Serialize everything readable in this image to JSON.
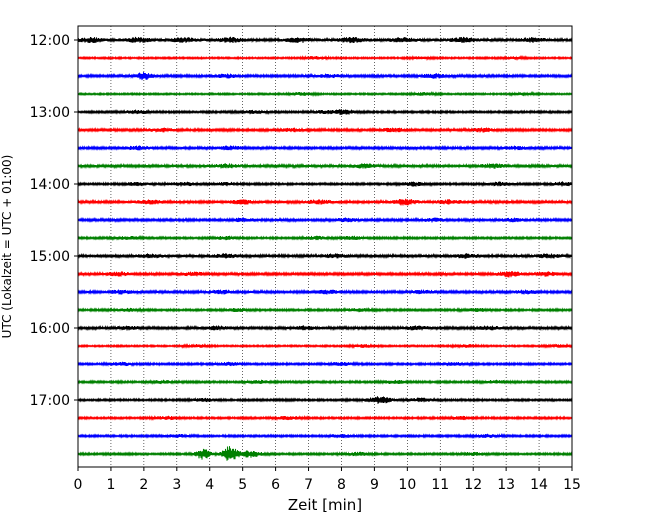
{
  "chart_data": {
    "type": "line",
    "title": "",
    "xlabel": "Zeit  [min]",
    "ylabel": "UTC (Lokalzeit = UTC + 01:00)",
    "xlim": [
      0,
      15
    ],
    "x_ticks": [
      "0",
      "1",
      "2",
      "3",
      "4",
      "5",
      "6",
      "7",
      "8",
      "9",
      "10",
      "11",
      "12",
      "13",
      "14",
      "15"
    ],
    "y_ticks": [
      "12:00",
      "13:00",
      "14:00",
      "15:00",
      "16:00",
      "17:00"
    ],
    "grid": "vertical dotted",
    "trace_interval_minutes": 15,
    "traces": [
      {
        "start": "12:00",
        "color": "#000000",
        "level": 0.45,
        "end": 15,
        "bursts": [
          {
            "x": 0.4,
            "amp": 0.5
          },
          {
            "x": 1.8,
            "amp": 0.55
          },
          {
            "x": 3.2,
            "amp": 0.5
          },
          {
            "x": 4.6,
            "amp": 0.55
          },
          {
            "x": 6.7,
            "amp": 0.5
          },
          {
            "x": 8.3,
            "amp": 0.55
          },
          {
            "x": 9.9,
            "amp": 0.5
          },
          {
            "x": 11.7,
            "amp": 0.55
          },
          {
            "x": 13.8,
            "amp": 0.45
          }
        ]
      },
      {
        "start": "12:15",
        "color": "#ff0000",
        "level": 0.25,
        "end": 15,
        "bursts": [
          {
            "x": 7.2,
            "amp": 0.35
          },
          {
            "x": 10.4,
            "amp": 0.3
          },
          {
            "x": 13.2,
            "amp": 0.3
          }
        ]
      },
      {
        "start": "12:30",
        "color": "#0000ff",
        "level": 0.35,
        "end": 15,
        "bursts": [
          {
            "x": 2.0,
            "amp": 1.1
          },
          {
            "x": 4.5,
            "amp": 0.45
          },
          {
            "x": 7.6,
            "amp": 0.4
          },
          {
            "x": 10.8,
            "amp": 0.55
          }
        ]
      },
      {
        "start": "12:45",
        "color": "#008000",
        "level": 0.25,
        "end": 15,
        "bursts": [
          {
            "x": 6.8,
            "amp": 0.4
          },
          {
            "x": 10.5,
            "amp": 0.35
          },
          {
            "x": 13.5,
            "amp": 0.3
          }
        ]
      },
      {
        "start": "13:00",
        "color": "#000000",
        "level": 0.3,
        "end": 15,
        "bursts": [
          {
            "x": 1.8,
            "amp": 0.45
          },
          {
            "x": 5.3,
            "amp": 0.4
          },
          {
            "x": 7.5,
            "amp": 0.4
          },
          {
            "x": 8.1,
            "amp": 0.6
          }
        ]
      },
      {
        "start": "13:15",
        "color": "#ff0000",
        "level": 0.35,
        "end": 15,
        "bursts": [
          {
            "x": 2.5,
            "amp": 0.45
          },
          {
            "x": 6.5,
            "amp": 0.4
          },
          {
            "x": 9.6,
            "amp": 0.45
          },
          {
            "x": 12.3,
            "amp": 0.45
          }
        ]
      },
      {
        "start": "13:30",
        "color": "#0000ff",
        "level": 0.35,
        "end": 15,
        "bursts": [
          {
            "x": 1.8,
            "amp": 0.45
          },
          {
            "x": 4.6,
            "amp": 0.45
          },
          {
            "x": 13.3,
            "amp": 0.4
          }
        ]
      },
      {
        "start": "13:45",
        "color": "#008000",
        "level": 0.4,
        "end": 15,
        "bursts": [
          {
            "x": 4.5,
            "amp": 0.45
          },
          {
            "x": 8.7,
            "amp": 0.45
          },
          {
            "x": 12.6,
            "amp": 0.45
          }
        ]
      },
      {
        "start": "14:00",
        "color": "#000000",
        "level": 0.3,
        "end": 15,
        "bursts": [
          {
            "x": 1.8,
            "amp": 0.45
          },
          {
            "x": 3.2,
            "amp": 0.5
          },
          {
            "x": 4.5,
            "amp": 0.45
          },
          {
            "x": 10.2,
            "amp": 0.5
          },
          {
            "x": 12.8,
            "amp": 0.5
          },
          {
            "x": 14.7,
            "amp": 0.5
          }
        ]
      },
      {
        "start": "14:15",
        "color": "#ff0000",
        "level": 0.4,
        "end": 15,
        "bursts": [
          {
            "x": 2.2,
            "amp": 0.45
          },
          {
            "x": 5.0,
            "amp": 0.45
          },
          {
            "x": 7.3,
            "amp": 0.45
          },
          {
            "x": 9.9,
            "amp": 0.75
          },
          {
            "x": 11.3,
            "amp": 0.45
          }
        ]
      },
      {
        "start": "14:30",
        "color": "#0000ff",
        "level": 0.35,
        "end": 15,
        "bursts": [
          {
            "x": 5.0,
            "amp": 0.45
          },
          {
            "x": 8.2,
            "amp": 0.5
          },
          {
            "x": 10.8,
            "amp": 0.45
          },
          {
            "x": 13.2,
            "amp": 0.4
          }
        ]
      },
      {
        "start": "14:45",
        "color": "#008000",
        "level": 0.3,
        "end": 15,
        "bursts": [
          {
            "x": 1.5,
            "amp": 0.4
          },
          {
            "x": 4.5,
            "amp": 0.4
          },
          {
            "x": 7.2,
            "amp": 0.4
          },
          {
            "x": 8.3,
            "amp": 0.45
          }
        ]
      },
      {
        "start": "15:00",
        "color": "#000000",
        "level": 0.4,
        "end": 15,
        "bursts": [
          {
            "x": 2.2,
            "amp": 0.45
          },
          {
            "x": 4.5,
            "amp": 0.45
          },
          {
            "x": 7.8,
            "amp": 0.45
          },
          {
            "x": 11.8,
            "amp": 0.45
          },
          {
            "x": 14.3,
            "amp": 0.45
          }
        ]
      },
      {
        "start": "15:15",
        "color": "#ff0000",
        "level": 0.35,
        "end": 15,
        "bursts": [
          {
            "x": 1.2,
            "amp": 0.5
          },
          {
            "x": 3.5,
            "amp": 0.45
          },
          {
            "x": 13.1,
            "amp": 0.75
          },
          {
            "x": 14.2,
            "amp": 0.5
          }
        ]
      },
      {
        "start": "15:30",
        "color": "#0000ff",
        "level": 0.35,
        "end": 15,
        "bursts": [
          {
            "x": 1.3,
            "amp": 0.45
          },
          {
            "x": 4.4,
            "amp": 0.45
          },
          {
            "x": 7.6,
            "amp": 0.45
          },
          {
            "x": 10.5,
            "amp": 0.45
          },
          {
            "x": 13.6,
            "amp": 0.45
          }
        ]
      },
      {
        "start": "15:45",
        "color": "#008000",
        "level": 0.3,
        "end": 15,
        "bursts": [
          {
            "x": 1.5,
            "amp": 0.4
          },
          {
            "x": 4.8,
            "amp": 0.4
          },
          {
            "x": 8.5,
            "amp": 0.4
          },
          {
            "x": 12.1,
            "amp": 0.4
          }
        ]
      },
      {
        "start": "16:00",
        "color": "#000000",
        "level": 0.35,
        "end": 15,
        "bursts": [
          {
            "x": 1.5,
            "amp": 0.45
          },
          {
            "x": 4.2,
            "amp": 0.45
          },
          {
            "x": 6.9,
            "amp": 0.45
          },
          {
            "x": 10.3,
            "amp": 0.45
          },
          {
            "x": 12.5,
            "amp": 0.45
          }
        ]
      },
      {
        "start": "16:15",
        "color": "#ff0000",
        "level": 0.25,
        "end": 15,
        "bursts": [
          {
            "x": 3.6,
            "amp": 0.35
          },
          {
            "x": 8.7,
            "amp": 0.35
          },
          {
            "x": 11.8,
            "amp": 0.35
          },
          {
            "x": 14.6,
            "amp": 0.35
          }
        ]
      },
      {
        "start": "16:30",
        "color": "#0000ff",
        "level": 0.3,
        "end": 15,
        "bursts": [
          {
            "x": 1.3,
            "amp": 0.4
          },
          {
            "x": 4.6,
            "amp": 0.4
          },
          {
            "x": 8.0,
            "amp": 0.4
          },
          {
            "x": 11.4,
            "amp": 0.4
          }
        ]
      },
      {
        "start": "16:45",
        "color": "#008000",
        "level": 0.3,
        "end": 15,
        "bursts": [
          {
            "x": 2.6,
            "amp": 0.4
          },
          {
            "x": 5.5,
            "amp": 0.4
          },
          {
            "x": 9.6,
            "amp": 0.4
          },
          {
            "x": 12.7,
            "amp": 0.4
          }
        ]
      },
      {
        "start": "17:00",
        "color": "#000000",
        "level": 0.3,
        "end": 15,
        "bursts": [
          {
            "x": 3.8,
            "amp": 0.4
          },
          {
            "x": 9.15,
            "amp": 1.0
          },
          {
            "x": 10.4,
            "amp": 0.45
          }
        ]
      },
      {
        "start": "17:15",
        "color": "#ff0000",
        "level": 0.3,
        "end": 15,
        "bursts": [
          {
            "x": 2.7,
            "amp": 0.4
          },
          {
            "x": 6.4,
            "amp": 0.4
          },
          {
            "x": 11.6,
            "amp": 0.4
          }
        ]
      },
      {
        "start": "17:30",
        "color": "#0000ff",
        "level": 0.3,
        "end": 15,
        "bursts": [
          {
            "x": 3.0,
            "amp": 0.4
          },
          {
            "x": 8.0,
            "amp": 0.4
          },
          {
            "x": 12.4,
            "amp": 0.4
          }
        ]
      },
      {
        "start": "17:45",
        "color": "#008000",
        "level": 0.3,
        "end": 15,
        "bursts": [
          {
            "x": 3.8,
            "amp": 1.5
          },
          {
            "x": 4.6,
            "amp": 2.2
          },
          {
            "x": 5.2,
            "amp": 0.9
          },
          {
            "x": 8.5,
            "amp": 0.4
          },
          {
            "x": 12.0,
            "amp": 0.4
          }
        ]
      }
    ]
  }
}
